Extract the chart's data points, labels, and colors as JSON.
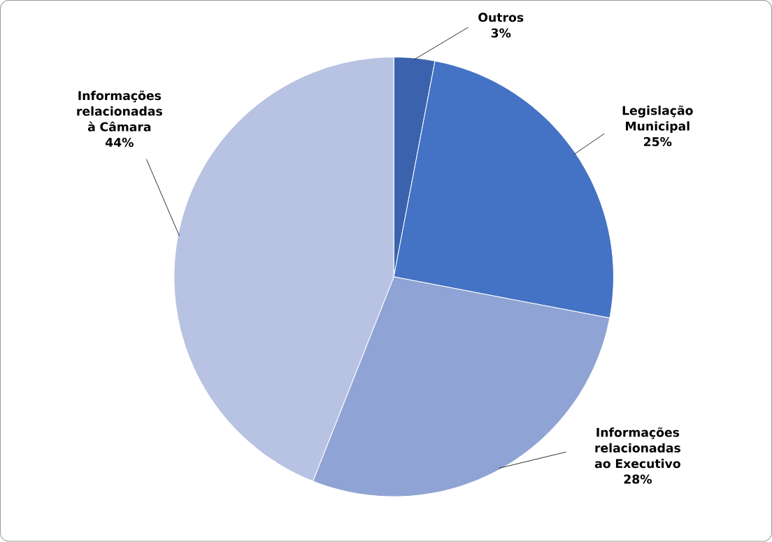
{
  "chart_data": {
    "type": "pie",
    "categories": [
      "Outros",
      "Legislação Municipal",
      "Informações relacionadas ao Executivo",
      "Informações relacionadas à Câmara"
    ],
    "values": [
      3,
      25,
      28,
      44
    ],
    "value_labels": [
      "3%",
      "25%",
      "28%",
      "44%"
    ],
    "colors": [
      "#3a62ad",
      "#4472c4",
      "#8fa3d4",
      "#b8c2e2"
    ]
  }
}
